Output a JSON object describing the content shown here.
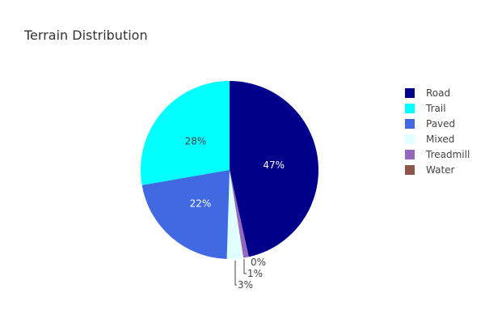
{
  "chart_data": {
    "type": "pie",
    "title": "Terrain Distribution",
    "slices": [
      {
        "label": "Road",
        "value": 47,
        "text": "47%",
        "color": "#00008b"
      },
      {
        "label": "Trail",
        "value": 28,
        "text": "28%",
        "color": "#00ffff"
      },
      {
        "label": "Paved",
        "value": 22,
        "text": "22%",
        "color": "#4169e1"
      },
      {
        "label": "Mixed",
        "value": 3,
        "text": "3%",
        "color": "#e0ffff"
      },
      {
        "label": "Treadmill",
        "value": 1,
        "text": "1%",
        "color": "#9467bd"
      },
      {
        "label": "Water",
        "value": 0,
        "text": "0%",
        "color": "#8c564b"
      }
    ],
    "legend": {
      "position": "right"
    }
  }
}
